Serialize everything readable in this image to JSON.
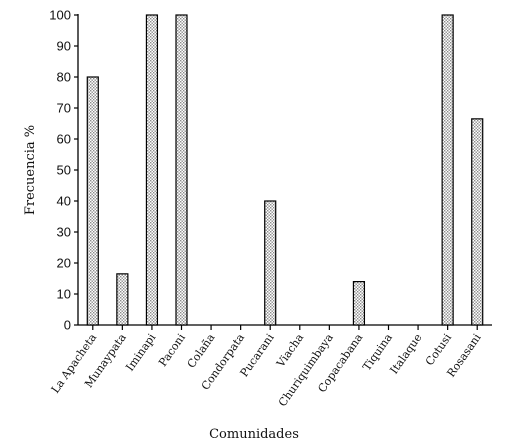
{
  "chart_data": {
    "type": "bar",
    "title": "",
    "xlabel": "Comunidades",
    "ylabel": "Frecuencia %",
    "ylim": [
      0,
      100
    ],
    "yticks": [
      0,
      10,
      20,
      30,
      40,
      50,
      60,
      70,
      80,
      90,
      100
    ],
    "grid": false,
    "categories": [
      "La Apacheta",
      "Munaypata",
      "Iminapi",
      "Paconi",
      "Colaña",
      "Condorpata",
      "Pucarani",
      "Viacha",
      "Churiquimbaya",
      "Copacabana",
      "Tiquina",
      "Italaque",
      "Cotusi",
      "Rosasani"
    ],
    "values": [
      80,
      16.5,
      100,
      100,
      0,
      0,
      40,
      0,
      0,
      14,
      0,
      0,
      100,
      66.5
    ],
    "bar_fill": "#dcdcdc",
    "bar_stroke": "#000000"
  }
}
